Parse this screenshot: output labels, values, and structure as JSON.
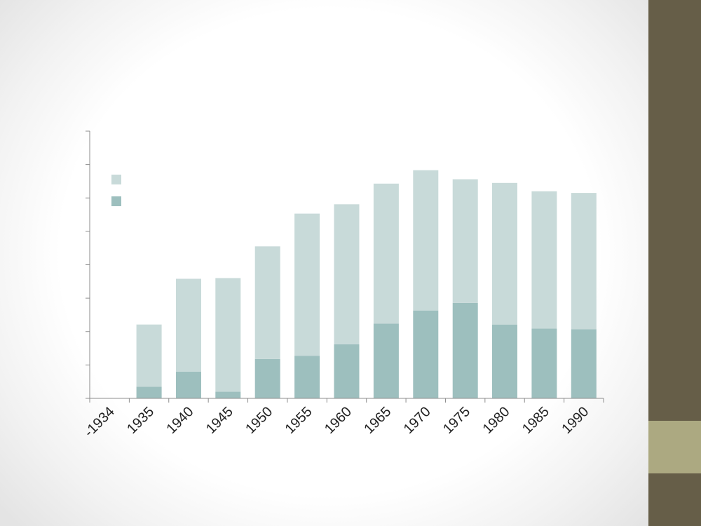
{
  "theme": {
    "sidebar_color": "#665e48",
    "sidebar_accent_color": "#aca981",
    "axis_color": "#8c8c8c"
  },
  "chart_data": {
    "type": "bar",
    "stacked": true,
    "title": "",
    "xlabel": "",
    "ylabel": "",
    "categories": [
      "-1934",
      "1935",
      "1940",
      "1945",
      "1950",
      "1955",
      "1960",
      "1965",
      "1970",
      "1975",
      "1980",
      "1985",
      "1990"
    ],
    "ylim": [
      0,
      8
    ],
    "y_tick_count": 8,
    "y_tick_labels_shown": false,
    "grid": false,
    "legend": {
      "position": "top-left",
      "labels_shown": false
    },
    "series": [
      {
        "values": [
          0,
          0.35,
          0.8,
          0.2,
          1.18,
          1.27,
          1.62,
          2.24,
          2.63,
          2.86,
          2.21,
          2.09,
          2.07
        ],
        "color": "#9dbfbe"
      },
      {
        "values": [
          0,
          1.86,
          2.78,
          3.4,
          3.37,
          4.26,
          4.19,
          4.19,
          4.2,
          3.7,
          4.24,
          4.11,
          4.08
        ],
        "color": "#c8dad9"
      }
    ]
  }
}
